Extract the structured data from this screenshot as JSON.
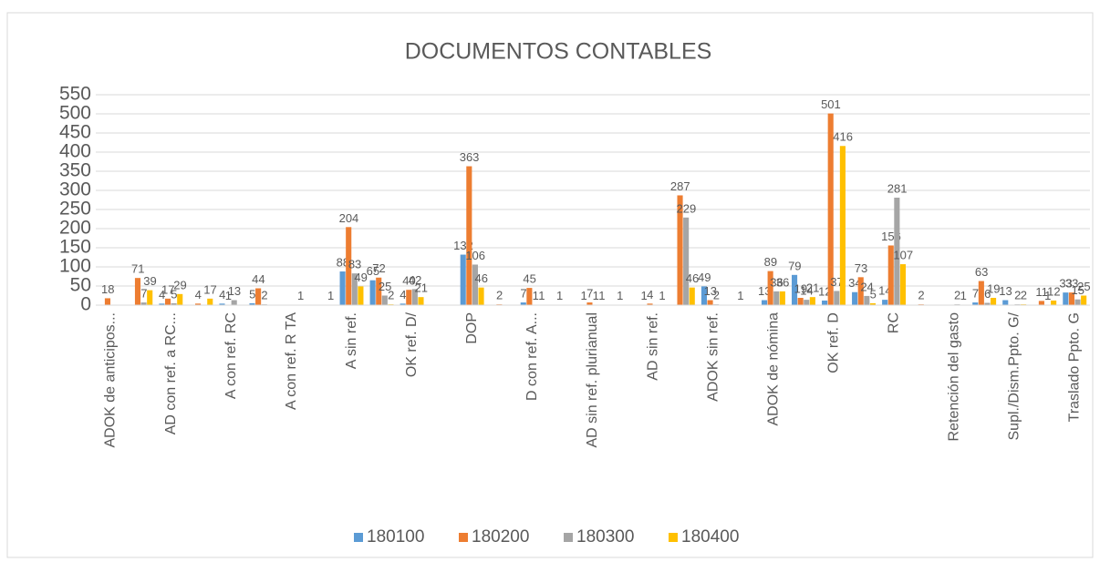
{
  "chart_data": {
    "type": "bar",
    "title": "DOCUMENTOS CONTABLES",
    "categories": [
      "ADOK de anticipos...",
      null,
      "AD con ref. a RC...",
      null,
      "A con ref. RC",
      null,
      "A con ref. R TA",
      null,
      "A sin ref.",
      null,
      "OK ref. D/",
      null,
      "DOP",
      null,
      "D con ref. A...",
      null,
      "AD sin ref. plurianual",
      null,
      "AD sin ref.",
      null,
      "ADOK sin ref.",
      null,
      "ADOK de nómina",
      null,
      "OK ref. D",
      null,
      "RC",
      null,
      "Retención del gasto",
      null,
      "Supl./Dism.Ppto. G/",
      null,
      "Traslado Ppto. G"
    ],
    "series": [
      {
        "name": "180100",
        "color": "#5b9bd5",
        "values": [
          null,
          null,
          4,
          null,
          4,
          5,
          null,
          null,
          88,
          65,
          4,
          null,
          132,
          null,
          7,
          null,
          1,
          null,
          1,
          null,
          49,
          null,
          13,
          79,
          12,
          34,
          14,
          null,
          null,
          7,
          13,
          null,
          33
        ]
      },
      {
        "name": "180200",
        "color": "#ed7d31",
        "values": [
          18,
          71,
          17,
          4,
          1,
          44,
          null,
          null,
          204,
          72,
          40,
          null,
          363,
          2,
          45,
          1,
          7,
          1,
          4,
          287,
          13,
          1,
          89,
          19,
          501,
          73,
          156,
          2,
          null,
          63,
          null,
          11,
          33
        ]
      },
      {
        "name": "180300",
        "color": "#a5a5a5",
        "values": [
          null,
          7,
          5,
          null,
          13,
          2,
          null,
          null,
          83,
          25,
          42,
          null,
          106,
          null,
          1,
          null,
          1,
          null,
          null,
          229,
          2,
          null,
          36,
          14,
          37,
          24,
          281,
          null,
          2,
          6,
          2,
          1,
          15
        ]
      },
      {
        "name": "180400",
        "color": "#ffc000",
        "values": [
          null,
          39,
          29,
          17,
          null,
          null,
          1,
          1,
          49,
          2,
          21,
          null,
          46,
          null,
          1,
          null,
          1,
          null,
          1,
          46,
          null,
          null,
          36,
          21,
          416,
          5,
          107,
          null,
          1,
          19,
          2,
          12,
          25
        ]
      }
    ],
    "ylim": [
      0,
      550
    ],
    "yticks": [
      0,
      50,
      100,
      150,
      200,
      250,
      300,
      350,
      400,
      450,
      500,
      550
    ],
    "grid": true,
    "legend": "bottom"
  }
}
